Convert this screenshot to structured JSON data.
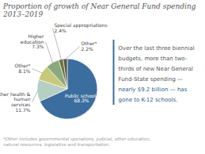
{
  "chart_data": {
    "type": "pie",
    "title": "Proportion of growth of Near General Fund spending 2013–2019",
    "categories": [
      "Public schools",
      "Other health &\nhuman\nservices",
      "Other*",
      "Higher\neducation",
      "Special appropriations",
      "Other*"
    ],
    "values": [
      68.3,
      11.7,
      8.1,
      7.3,
      2.4,
      2.2
    ],
    "value_labels": [
      "68.3%",
      "11.7%",
      "8.1%",
      "7.3%",
      "2.4%",
      "2.2%"
    ],
    "data_labels": true,
    "colors": [
      "#3b6e9f",
      "#b5cfc3",
      "#c9c87a",
      "#8aaa7e",
      "#6e7040",
      "#5a5a48"
    ],
    "annotations": [
      {
        "text": "Over the last three biennial",
        "color": "#555555"
      },
      {
        "text": "budgets, more than two-",
        "color": "#555555"
      },
      {
        "text": "thirds of new Near General",
        "color": "#555555"
      },
      {
        "text": "Fund-State spending —",
        "color": "#555555"
      },
      {
        "text": "nearly $9.2 billion — has",
        "color": "#2e5f8a"
      },
      {
        "text": "gone to K-12 schools.",
        "color": "#2e5f8a"
      }
    ],
    "caption": "*Other includes governmental operations, judicial, other education,\nnatural resources, legislative and transportation."
  }
}
